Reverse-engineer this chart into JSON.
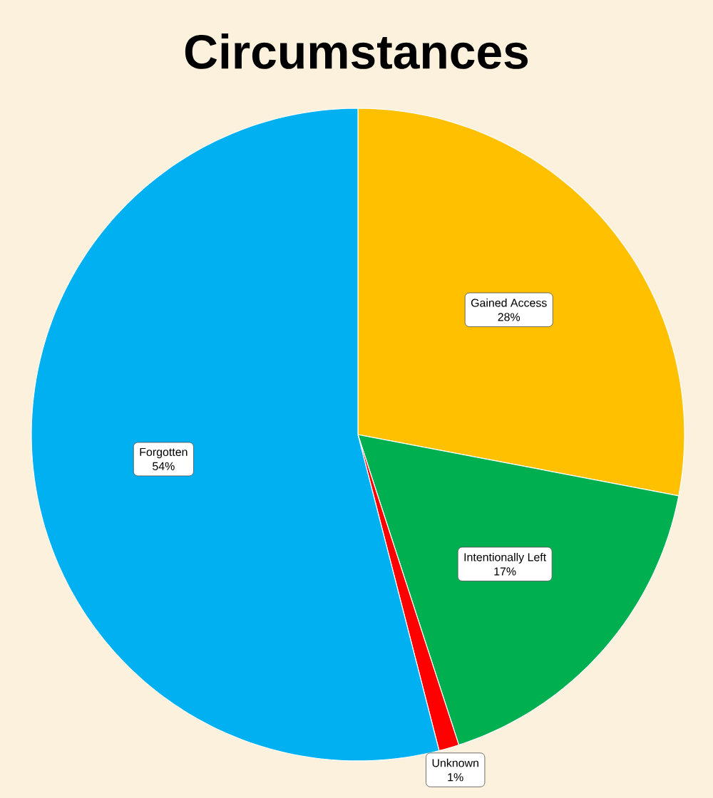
{
  "chart_data": {
    "type": "pie",
    "title": "Circumstances",
    "categories": [
      "Gained Access",
      "Intentionally Left",
      "Unknown",
      "Forgotten"
    ],
    "values": [
      28,
      17,
      1,
      54
    ],
    "value_labels": [
      "28%",
      "17%",
      "1%",
      "54%"
    ],
    "colors": [
      "#ffc000",
      "#00b050",
      "#ff0000",
      "#00b0f0"
    ]
  }
}
